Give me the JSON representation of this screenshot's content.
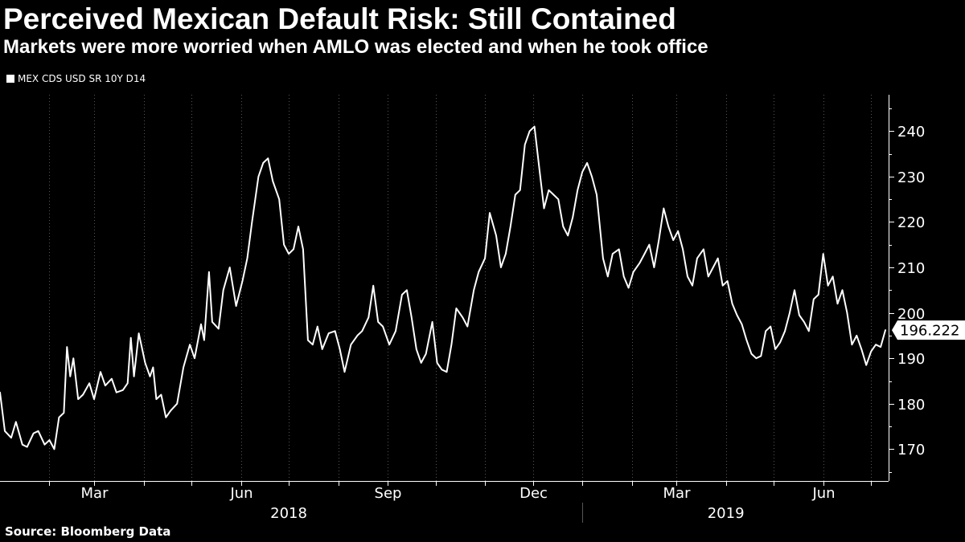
{
  "header": {
    "title": "Perceived Mexican Default Risk: Still Contained",
    "subtitle": "Markets were more worried when AMLO was elected and when he took office"
  },
  "legend": {
    "label": "MEX CDS USD SR 10Y D14"
  },
  "footer": {
    "source": "Source: Bloomberg Data"
  },
  "colors": {
    "background": "#000000",
    "line": "#ffffff",
    "grid": "#555555"
  },
  "chart_data": {
    "type": "line",
    "title": "Perceived Mexican Default Risk: Still Contained",
    "subtitle": "Markets were more worried when AMLO was elected and when he took office",
    "xlabel": "",
    "ylabel": "",
    "ylim": [
      163,
      248
    ],
    "xlim": [
      "2018-01-01",
      "2019-07-12"
    ],
    "y_ticks": [
      170,
      180,
      190,
      200,
      210,
      220,
      230,
      240
    ],
    "month_ticks": [
      {
        "label": "",
        "date": "2018-02-01"
      },
      {
        "label": "Mar",
        "date": "2018-03-01"
      },
      {
        "label": "",
        "date": "2018-04-01"
      },
      {
        "label": "",
        "date": "2018-05-01"
      },
      {
        "label": "Jun",
        "date": "2018-06-01"
      },
      {
        "label": "",
        "date": "2018-07-01"
      },
      {
        "label": "",
        "date": "2018-08-01"
      },
      {
        "label": "Sep",
        "date": "2018-09-01"
      },
      {
        "label": "",
        "date": "2018-10-01"
      },
      {
        "label": "",
        "date": "2018-11-01"
      },
      {
        "label": "Dec",
        "date": "2018-12-01"
      },
      {
        "label": "",
        "date": "2019-01-01"
      },
      {
        "label": "",
        "date": "2019-02-01"
      },
      {
        "label": "Mar",
        "date": "2019-03-01"
      },
      {
        "label": "",
        "date": "2019-04-01"
      },
      {
        "label": "",
        "date": "2019-05-01"
      },
      {
        "label": "Jun",
        "date": "2019-06-01"
      },
      {
        "label": "",
        "date": "2019-07-01"
      }
    ],
    "year_labels": [
      {
        "label": "2018",
        "date": "2018-07-01"
      },
      {
        "label": "2019",
        "date": "2019-04-01"
      }
    ],
    "year_divider_date": "2019-01-01",
    "last_value_label": "196.222",
    "series": [
      {
        "name": "MEX CDS USD SR 10Y D14",
        "points": [
          [
            "2018-01-01",
            182.5
          ],
          [
            "2018-01-04",
            174.0
          ],
          [
            "2018-01-08",
            172.5
          ],
          [
            "2018-01-11",
            176.0
          ],
          [
            "2018-01-15",
            171.0
          ],
          [
            "2018-01-18",
            170.5
          ],
          [
            "2018-01-22",
            173.5
          ],
          [
            "2018-01-25",
            174.0
          ],
          [
            "2018-01-29",
            171.0
          ],
          [
            "2018-02-01",
            172.0
          ],
          [
            "2018-02-04",
            170.0
          ],
          [
            "2018-02-07",
            177.0
          ],
          [
            "2018-02-10",
            178.0
          ],
          [
            "2018-02-12",
            192.5
          ],
          [
            "2018-02-14",
            186.0
          ],
          [
            "2018-02-16",
            190.0
          ],
          [
            "2018-02-19",
            181.0
          ],
          [
            "2018-02-22",
            182.0
          ],
          [
            "2018-02-26",
            184.5
          ],
          [
            "2018-03-01",
            181.0
          ],
          [
            "2018-03-05",
            187.0
          ],
          [
            "2018-03-08",
            184.0
          ],
          [
            "2018-03-12",
            185.5
          ],
          [
            "2018-03-15",
            182.5
          ],
          [
            "2018-03-19",
            183.0
          ],
          [
            "2018-03-22",
            184.5
          ],
          [
            "2018-03-24",
            194.5
          ],
          [
            "2018-03-26",
            186.0
          ],
          [
            "2018-03-29",
            195.5
          ],
          [
            "2018-04-02",
            189.0
          ],
          [
            "2018-04-05",
            186.0
          ],
          [
            "2018-04-07",
            188.0
          ],
          [
            "2018-04-09",
            181.0
          ],
          [
            "2018-04-12",
            182.0
          ],
          [
            "2018-04-15",
            177.0
          ],
          [
            "2018-04-18",
            178.5
          ],
          [
            "2018-04-22",
            180.0
          ],
          [
            "2018-04-26",
            188.0
          ],
          [
            "2018-04-30",
            193.0
          ],
          [
            "2018-05-03",
            190.0
          ],
          [
            "2018-05-07",
            197.5
          ],
          [
            "2018-05-09",
            194.0
          ],
          [
            "2018-05-12",
            209.0
          ],
          [
            "2018-05-14",
            198.0
          ],
          [
            "2018-05-18",
            196.5
          ],
          [
            "2018-05-21",
            205.0
          ],
          [
            "2018-05-25",
            210.0
          ],
          [
            "2018-05-29",
            201.5
          ],
          [
            "2018-06-02",
            207.0
          ],
          [
            "2018-06-05",
            212.0
          ],
          [
            "2018-06-08",
            220.0
          ],
          [
            "2018-06-12",
            230.0
          ],
          [
            "2018-06-15",
            233.0
          ],
          [
            "2018-06-18",
            234.0
          ],
          [
            "2018-06-21",
            229.0
          ],
          [
            "2018-06-25",
            225.0
          ],
          [
            "2018-06-28",
            215.0
          ],
          [
            "2018-07-01",
            213.0
          ],
          [
            "2018-07-04",
            214.0
          ],
          [
            "2018-07-07",
            219.0
          ],
          [
            "2018-07-10",
            214.0
          ],
          [
            "2018-07-13",
            194.0
          ],
          [
            "2018-07-16",
            193.0
          ],
          [
            "2018-07-19",
            197.0
          ],
          [
            "2018-07-22",
            192.0
          ],
          [
            "2018-07-26",
            195.5
          ],
          [
            "2018-07-30",
            196.0
          ],
          [
            "2018-08-02",
            192.0
          ],
          [
            "2018-08-05",
            187.0
          ],
          [
            "2018-08-09",
            193.0
          ],
          [
            "2018-08-13",
            195.0
          ],
          [
            "2018-08-16",
            196.0
          ],
          [
            "2018-08-20",
            199.0
          ],
          [
            "2018-08-23",
            206.0
          ],
          [
            "2018-08-26",
            198.0
          ],
          [
            "2018-08-29",
            197.0
          ],
          [
            "2018-09-02",
            193.0
          ],
          [
            "2018-09-06",
            196.0
          ],
          [
            "2018-09-10",
            204.0
          ],
          [
            "2018-09-13",
            205.0
          ],
          [
            "2018-09-16",
            199.0
          ],
          [
            "2018-09-19",
            192.0
          ],
          [
            "2018-09-22",
            189.0
          ],
          [
            "2018-09-25",
            191.0
          ],
          [
            "2018-09-29",
            198.0
          ],
          [
            "2018-10-02",
            189.0
          ],
          [
            "2018-10-05",
            187.5
          ],
          [
            "2018-10-08",
            187.0
          ],
          [
            "2018-10-11",
            193.0
          ],
          [
            "2018-10-14",
            201.0
          ],
          [
            "2018-10-18",
            199.0
          ],
          [
            "2018-10-21",
            197.0
          ],
          [
            "2018-10-25",
            205.0
          ],
          [
            "2018-10-28",
            209.0
          ],
          [
            "2018-11-01",
            212.0
          ],
          [
            "2018-11-04",
            222.0
          ],
          [
            "2018-11-08",
            217.0
          ],
          [
            "2018-11-11",
            210.0
          ],
          [
            "2018-11-14",
            213.0
          ],
          [
            "2018-11-17",
            219.0
          ],
          [
            "2018-11-20",
            226.0
          ],
          [
            "2018-11-23",
            227.0
          ],
          [
            "2018-11-26",
            237.0
          ],
          [
            "2018-11-29",
            240.0
          ],
          [
            "2018-12-02",
            241.0
          ],
          [
            "2018-12-05",
            232.0
          ],
          [
            "2018-12-08",
            223.0
          ],
          [
            "2018-12-11",
            227.0
          ],
          [
            "2018-12-14",
            226.0
          ],
          [
            "2018-12-17",
            225.0
          ],
          [
            "2018-12-20",
            219.0
          ],
          [
            "2018-12-23",
            217.0
          ],
          [
            "2018-12-26",
            221.0
          ],
          [
            "2018-12-29",
            227.0
          ],
          [
            "2019-01-01",
            231.0
          ],
          [
            "2019-01-04",
            233.0
          ],
          [
            "2019-01-07",
            230.0
          ],
          [
            "2019-01-10",
            226.0
          ],
          [
            "2019-01-14",
            212.0
          ],
          [
            "2019-01-17",
            208.0
          ],
          [
            "2019-01-20",
            213.0
          ],
          [
            "2019-01-24",
            214.0
          ],
          [
            "2019-01-27",
            208.0
          ],
          [
            "2019-01-30",
            205.5
          ],
          [
            "2019-02-02",
            209.0
          ],
          [
            "2019-02-06",
            211.0
          ],
          [
            "2019-02-09",
            213.0
          ],
          [
            "2019-02-12",
            215.0
          ],
          [
            "2019-02-15",
            210.0
          ],
          [
            "2019-02-18",
            216.0
          ],
          [
            "2019-02-21",
            223.0
          ],
          [
            "2019-02-24",
            219.0
          ],
          [
            "2019-02-27",
            216.0
          ],
          [
            "2019-03-02",
            218.0
          ],
          [
            "2019-03-05",
            214.0
          ],
          [
            "2019-03-08",
            208.0
          ],
          [
            "2019-03-11",
            206.0
          ],
          [
            "2019-03-14",
            212.0
          ],
          [
            "2019-03-18",
            214.0
          ],
          [
            "2019-03-21",
            208.0
          ],
          [
            "2019-03-24",
            210.0
          ],
          [
            "2019-03-27",
            212.0
          ],
          [
            "2019-03-30",
            206.0
          ],
          [
            "2019-04-02",
            207.0
          ],
          [
            "2019-04-05",
            202.0
          ],
          [
            "2019-04-08",
            199.5
          ],
          [
            "2019-04-11",
            197.5
          ],
          [
            "2019-04-14",
            194.0
          ],
          [
            "2019-04-17",
            191.0
          ],
          [
            "2019-04-20",
            190.0
          ],
          [
            "2019-04-23",
            190.5
          ],
          [
            "2019-04-26",
            196.0
          ],
          [
            "2019-04-29",
            197.0
          ],
          [
            "2019-05-02",
            192.0
          ],
          [
            "2019-05-05",
            193.5
          ],
          [
            "2019-05-08",
            196.0
          ],
          [
            "2019-05-11",
            200.0
          ],
          [
            "2019-05-14",
            205.0
          ],
          [
            "2019-05-17",
            199.5
          ],
          [
            "2019-05-20",
            198.0
          ],
          [
            "2019-05-23",
            196.0
          ],
          [
            "2019-05-26",
            203.0
          ],
          [
            "2019-05-29",
            204.0
          ],
          [
            "2019-06-01",
            213.0
          ],
          [
            "2019-06-04",
            206.0
          ],
          [
            "2019-06-07",
            208.0
          ],
          [
            "2019-06-10",
            202.0
          ],
          [
            "2019-06-13",
            205.0
          ],
          [
            "2019-06-16",
            200.0
          ],
          [
            "2019-06-19",
            193.0
          ],
          [
            "2019-06-22",
            195.0
          ],
          [
            "2019-06-25",
            192.0
          ],
          [
            "2019-06-28",
            188.5
          ],
          [
            "2019-07-01",
            191.5
          ],
          [
            "2019-07-04",
            193.0
          ],
          [
            "2019-07-07",
            192.5
          ],
          [
            "2019-07-10",
            196.2
          ]
        ]
      }
    ]
  }
}
